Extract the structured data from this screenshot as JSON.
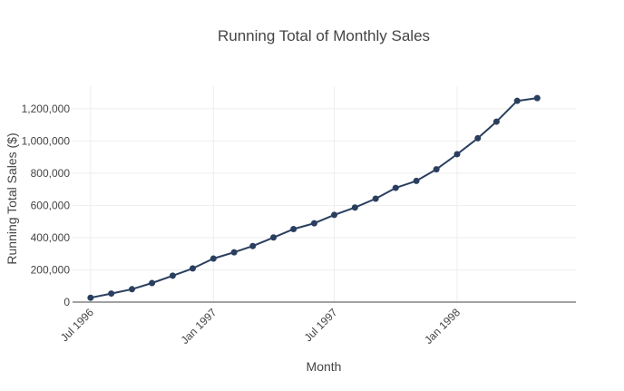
{
  "chart_data": {
    "type": "line",
    "title": "Running Total of Monthly Sales",
    "xlabel": "Month",
    "ylabel": "Running Total Sales ($)",
    "x_tick_labels": [
      "Jul 1996",
      "Jan 1997",
      "Jul 1997",
      "Jan 1998"
    ],
    "x_tick_dates": [
      "1996-07-01",
      "1997-01-01",
      "1997-07-01",
      "1998-01-01"
    ],
    "y_ticks": [
      0,
      200000,
      400000,
      600000,
      800000,
      1000000,
      1200000
    ],
    "y_tick_labels": [
      "0",
      "200,000",
      "400,000",
      "600,000",
      "800,000",
      "1,000,000",
      "1,200,000"
    ],
    "x_range": [
      "1996-06-04",
      "1998-06-28"
    ],
    "ylim": [
      0,
      1340000
    ],
    "grid": true,
    "colors": {
      "series": "#2a3f5f",
      "grid": "#eeeeee",
      "axis": "#444444"
    },
    "x": [
      "1996-07-01",
      "1996-08-01",
      "1996-09-01",
      "1996-10-01",
      "1996-11-01",
      "1996-12-01",
      "1997-01-01",
      "1997-02-01",
      "1997-03-01",
      "1997-04-01",
      "1997-05-01",
      "1997-06-01",
      "1997-07-01",
      "1997-08-01",
      "1997-09-01",
      "1997-10-01",
      "1997-11-01",
      "1997-12-01",
      "1998-01-01",
      "1998-02-01",
      "1998-03-01",
      "1998-04-01",
      "1998-05-01"
    ],
    "series": [
      {
        "values": [
          27000,
          53000,
          80000,
          118000,
          164000,
          209000,
          270000,
          309000,
          348000,
          401000,
          453000,
          489000,
          541000,
          587000,
          642000,
          709000,
          752000,
          824000,
          918000,
          1017000,
          1120000,
          1249000,
          1266000
        ]
      }
    ]
  }
}
